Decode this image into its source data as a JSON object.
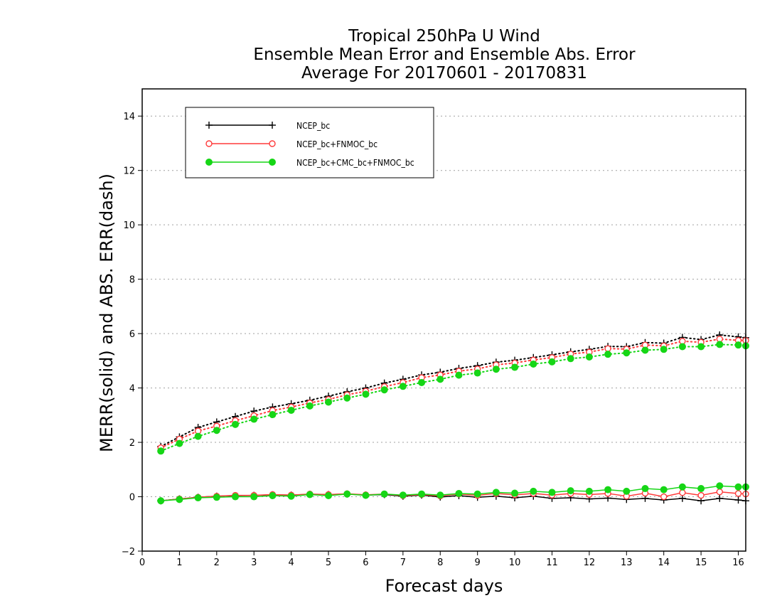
{
  "chart_data": {
    "type": "line",
    "title": [
      "Tropical 250hPa U Wind",
      "Ensemble Mean Error and Ensemble Abs. Error",
      "Average For 20170601 - 20170831"
    ],
    "xlabel": "Forecast days",
    "ylabel": "MERR(solid) and ABS. ERR(dash)",
    "xlim": [
      0,
      16.2
    ],
    "ylim": [
      -2,
      15
    ],
    "xticks": [
      0,
      1,
      2,
      3,
      4,
      5,
      6,
      7,
      8,
      9,
      10,
      11,
      12,
      13,
      14,
      15,
      16
    ],
    "yticks": [
      -2,
      0,
      2,
      4,
      6,
      8,
      10,
      12,
      14
    ],
    "grid": true,
    "legend_position": "top-left",
    "x": [
      0.5,
      1,
      1.5,
      2,
      2.5,
      3,
      3.5,
      4,
      4.5,
      5,
      5.5,
      6,
      6.5,
      7,
      7.5,
      8,
      8.5,
      9,
      9.5,
      10,
      10.5,
      11,
      11.5,
      12,
      12.5,
      13,
      13.5,
      14,
      14.5,
      15,
      15.5,
      16,
      16.2
    ],
    "series": [
      {
        "name": "NCEP_bc",
        "color": "#000000",
        "marker": "plus",
        "merr": [
          -0.15,
          -0.08,
          -0.02,
          0.02,
          0.04,
          0.05,
          0.07,
          0.06,
          0.09,
          0.08,
          0.1,
          0.06,
          0.08,
          0.02,
          0.06,
          -0.01,
          0.04,
          -0.02,
          0.02,
          -0.04,
          0.02,
          -0.06,
          -0.04,
          -0.08,
          -0.05,
          -0.1,
          -0.06,
          -0.12,
          -0.06,
          -0.15,
          -0.06,
          -0.12,
          -0.15
        ],
        "abs_err": [
          1.85,
          2.2,
          2.55,
          2.75,
          2.95,
          3.15,
          3.3,
          3.42,
          3.55,
          3.7,
          3.86,
          4.0,
          4.18,
          4.32,
          4.48,
          4.58,
          4.72,
          4.82,
          4.95,
          5.02,
          5.12,
          5.22,
          5.33,
          5.42,
          5.53,
          5.52,
          5.67,
          5.65,
          5.86,
          5.78,
          5.95,
          5.88,
          5.85
        ]
      },
      {
        "name": "NCEP_bc+FNMOC_bc",
        "color": "#ff3a3a",
        "marker": "open-circle",
        "merr": [
          -0.15,
          -0.08,
          -0.02,
          0.02,
          0.05,
          0.05,
          0.08,
          0.06,
          0.1,
          0.08,
          0.11,
          0.07,
          0.1,
          0.04,
          0.08,
          0.03,
          0.1,
          0.05,
          0.12,
          0.07,
          0.12,
          0.06,
          0.12,
          0.08,
          0.12,
          0.02,
          0.13,
          0.0,
          0.15,
          0.05,
          0.18,
          0.12,
          0.1
        ],
        "abs_err": [
          1.8,
          2.12,
          2.42,
          2.6,
          2.8,
          2.98,
          3.17,
          3.3,
          3.45,
          3.58,
          3.75,
          3.88,
          4.05,
          4.2,
          4.38,
          4.48,
          4.62,
          4.7,
          4.85,
          4.92,
          5.03,
          5.12,
          5.25,
          5.32,
          5.45,
          5.43,
          5.58,
          5.55,
          5.72,
          5.68,
          5.8,
          5.75,
          5.75
        ]
      },
      {
        "name": "NCEP_bc+CMC_bc+FNMOC_bc",
        "color": "#16d616",
        "marker": "filled-circle",
        "merr": [
          -0.15,
          -0.1,
          -0.04,
          -0.02,
          0.0,
          0.0,
          0.04,
          0.02,
          0.08,
          0.04,
          0.1,
          0.05,
          0.1,
          0.06,
          0.1,
          0.06,
          0.12,
          0.1,
          0.16,
          0.13,
          0.2,
          0.16,
          0.22,
          0.2,
          0.26,
          0.2,
          0.3,
          0.26,
          0.36,
          0.3,
          0.4,
          0.36,
          0.36
        ],
        "abs_err": [
          1.68,
          1.96,
          2.22,
          2.44,
          2.66,
          2.85,
          3.02,
          3.18,
          3.34,
          3.48,
          3.63,
          3.77,
          3.93,
          4.06,
          4.2,
          4.32,
          4.47,
          4.55,
          4.69,
          4.76,
          4.88,
          4.96,
          5.08,
          5.14,
          5.24,
          5.29,
          5.39,
          5.42,
          5.52,
          5.52,
          5.6,
          5.58,
          5.55
        ]
      }
    ]
  }
}
